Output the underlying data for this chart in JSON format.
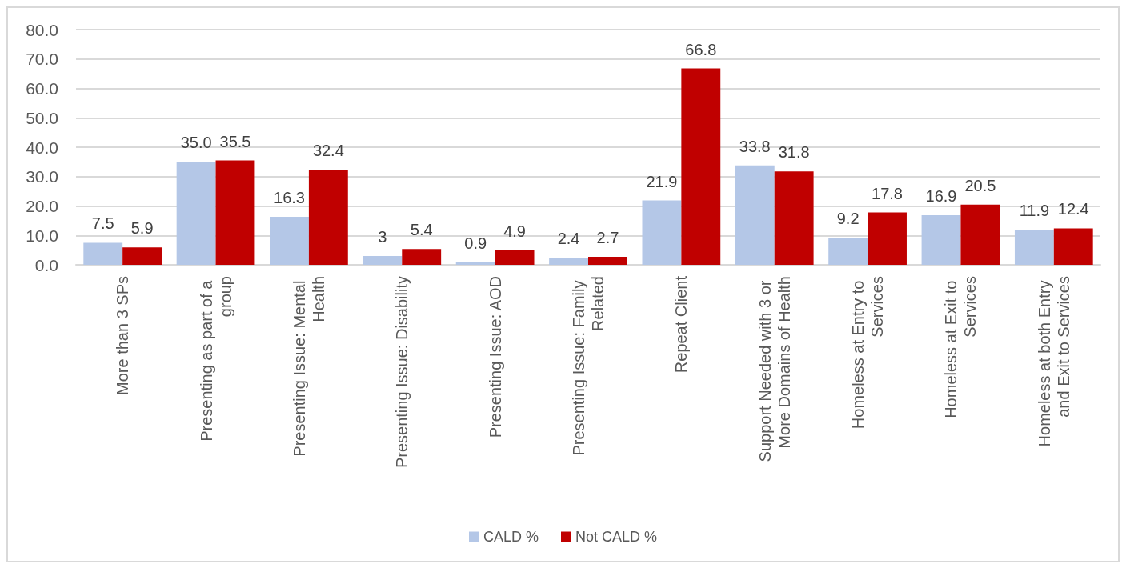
{
  "chart_data": {
    "type": "bar",
    "categories": [
      "More than 3 SPs",
      "Presenting as part of a group",
      "Presenting Issue: Mental Health",
      "Presenting Issue: Disability",
      "Presenting Issue: AOD",
      "Presenting Issue: Family Related",
      "Repeat Client",
      "Support Needed with 3 or More Domains of Health",
      "Homeless at Entry to Services",
      "Homeless at Exit to Services",
      "Homeless at both Entry and Exit to Services"
    ],
    "series": [
      {
        "name": "CALD %",
        "color": "#b4c7e7",
        "values": [
          7.5,
          35.0,
          16.3,
          3,
          0.9,
          2.4,
          21.9,
          33.8,
          9.2,
          16.9,
          11.9
        ],
        "value_labels": [
          "7.5",
          "35.0",
          "16.3",
          "3",
          "0.9",
          "2.4",
          "21.9",
          "33.8",
          "9.2",
          "16.9",
          "11.9"
        ]
      },
      {
        "name": "Not CALD %",
        "color": "#c00000",
        "values": [
          5.9,
          35.5,
          32.4,
          5.4,
          4.9,
          2.7,
          66.8,
          31.8,
          17.8,
          20.5,
          12.4
        ],
        "value_labels": [
          "5.9",
          "35.5",
          "32.4",
          "5.4",
          "4.9",
          "2.7",
          "66.8",
          "31.8",
          "17.8",
          "20.5",
          "12.4"
        ]
      }
    ],
    "ylim": [
      0,
      80
    ],
    "yticks": [
      {
        "value": 0,
        "label": "0.0"
      },
      {
        "value": 10,
        "label": "10.0"
      },
      {
        "value": 20,
        "label": "20.0"
      },
      {
        "value": 30,
        "label": "30.0"
      },
      {
        "value": 40,
        "label": "40.0"
      },
      {
        "value": 50,
        "label": "50.0"
      },
      {
        "value": 60,
        "label": "60.0"
      },
      {
        "value": 70,
        "label": "70.0"
      },
      {
        "value": 80,
        "label": "80.0"
      }
    ],
    "grid": "y",
    "legend": "bottom"
  }
}
